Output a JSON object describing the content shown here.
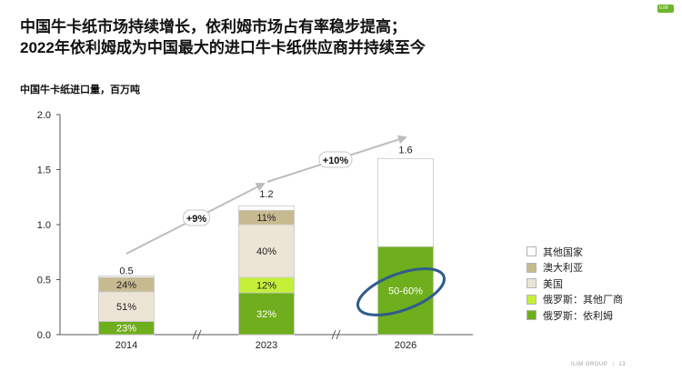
{
  "header": {
    "title_line1": "中国牛卡纸市场持续增长，依利姆市场占有率稳步提高；",
    "title_line2": "2022年依利姆成为中国最大的进口牛卡纸供应商并持续至今",
    "logo_text": "ILIM"
  },
  "footer": {
    "brand": "ILIM GROUP",
    "page_number": "13"
  },
  "colors": {
    "其他国家": "#ffffff",
    "澳大利亚": "#c8ba90",
    "美国": "#ece5d6",
    "俄罗斯：其他厂商": "#c6ef3a",
    "俄罗斯：依利姆": "#6fae1c",
    "trend_arrow": "#bdbdbd",
    "highlight_ellipse": "#2f5c8a"
  },
  "chart_data": {
    "type": "bar",
    "stacked": true,
    "title": "中国牛卡纸进口量，百万吨",
    "ylim": [
      0,
      2.0
    ],
    "yticks": [
      "0.0",
      "0.5",
      "1.0",
      "1.5",
      "2.0"
    ],
    "categories": [
      "2014",
      "2023",
      "2026"
    ],
    "totals": [
      0.5,
      1.2,
      1.6
    ],
    "total_labels": [
      "0.5",
      "1.2",
      "1.6"
    ],
    "series": [
      {
        "name": "俄罗斯：依利姆",
        "values": [
          0.12,
          0.38,
          0.8
        ],
        "labels": [
          "23%",
          "32%",
          "50-60%"
        ]
      },
      {
        "name": "俄罗斯：其他厂商",
        "values": [
          0,
          0.14,
          0
        ],
        "labels": [
          "",
          "12%",
          ""
        ]
      },
      {
        "name": "美国",
        "values": [
          0.27,
          0.48,
          0
        ],
        "labels": [
          "51%",
          "40%",
          ""
        ]
      },
      {
        "name": "澳大利亚",
        "values": [
          0.13,
          0.13,
          0
        ],
        "labels": [
          "24%",
          "11%",
          ""
        ]
      },
      {
        "name": "其他国家",
        "values": [
          0.015,
          0.04,
          0.8
        ],
        "labels": [
          "",
          "",
          ""
        ]
      }
    ],
    "legend_order": [
      "其他国家",
      "澳大利亚",
      "美国",
      "俄罗斯：其他厂商",
      "俄罗斯：依利姆"
    ],
    "legend_position": "right",
    "axis_breaks": "between each category",
    "growth_annotations": [
      {
        "from": "2014",
        "to": "2023",
        "label": "+9%"
      },
      {
        "from": "2023",
        "to": "2026",
        "label": "+10%"
      }
    ],
    "highlight": {
      "category": "2026",
      "label": "50-60%"
    },
    "grid": false
  }
}
